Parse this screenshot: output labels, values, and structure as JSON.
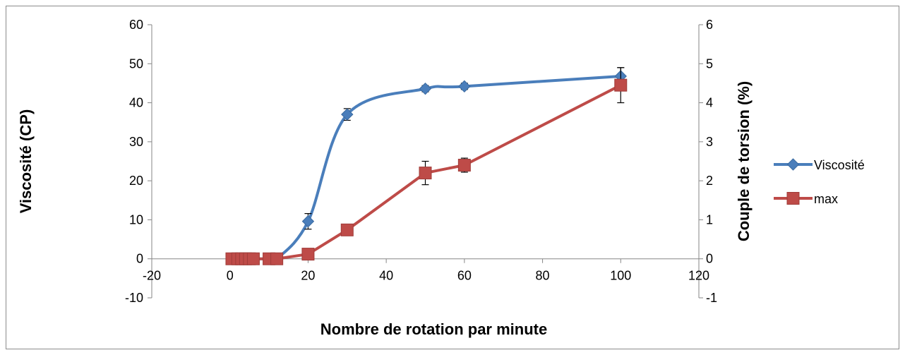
{
  "chart_data": {
    "type": "line",
    "title": "",
    "xlabel": "Nombre de rotation par minute",
    "ylabel": "Viscosité (CP)",
    "y2label": "Couple de torsion (%)",
    "xlim": [
      -20,
      120
    ],
    "ylim": [
      -10,
      60
    ],
    "y2lim": [
      -1,
      6
    ],
    "x_ticks": [
      -20,
      0,
      20,
      40,
      60,
      80,
      100,
      120
    ],
    "y_ticks": [
      -10,
      0,
      10,
      20,
      30,
      40,
      50,
      60
    ],
    "y2_ticks": [
      -1,
      0,
      1,
      2,
      3,
      4,
      5,
      6
    ],
    "x_tick_labels": [
      "-20",
      "0",
      "20",
      "40",
      "60",
      "80",
      "100",
      "120"
    ],
    "y_tick_labels": [
      "-10",
      "0",
      "10",
      "20",
      "30",
      "40",
      "50",
      "60"
    ],
    "y2_tick_labels": [
      "-1",
      "0",
      "1",
      "2",
      "3",
      "4",
      "5",
      "6"
    ],
    "legend_position": "right",
    "grid": false,
    "series": [
      {
        "name": "Viscosité",
        "axis": "left",
        "color": "#4a7ebb",
        "marker": "diamond",
        "smooth": true,
        "x": [
          0.5,
          2,
          3,
          4,
          5,
          6,
          10,
          12,
          20,
          30,
          50,
          60,
          100
        ],
        "y": [
          0,
          0,
          0,
          0,
          0,
          0,
          0,
          0,
          9.6,
          37,
          43.6,
          44.2,
          46.8
        ],
        "error": [
          0,
          0,
          0,
          0,
          0,
          0,
          0,
          0,
          2,
          1.5,
          0.8,
          0.8,
          2.2
        ]
      },
      {
        "name": "max",
        "axis": "right",
        "color": "#be4b48",
        "marker": "square",
        "smooth": false,
        "x": [
          0.5,
          2,
          3,
          4,
          5,
          6,
          10,
          12,
          20,
          30,
          50,
          60,
          100
        ],
        "y": [
          0,
          0,
          0,
          0,
          0,
          0,
          0,
          0,
          0.12,
          0.74,
          2.2,
          2.4,
          4.45
        ],
        "error": [
          0,
          0,
          0,
          0,
          0,
          0,
          0,
          0,
          0,
          0,
          0.3,
          0.18,
          0.45
        ]
      }
    ]
  }
}
